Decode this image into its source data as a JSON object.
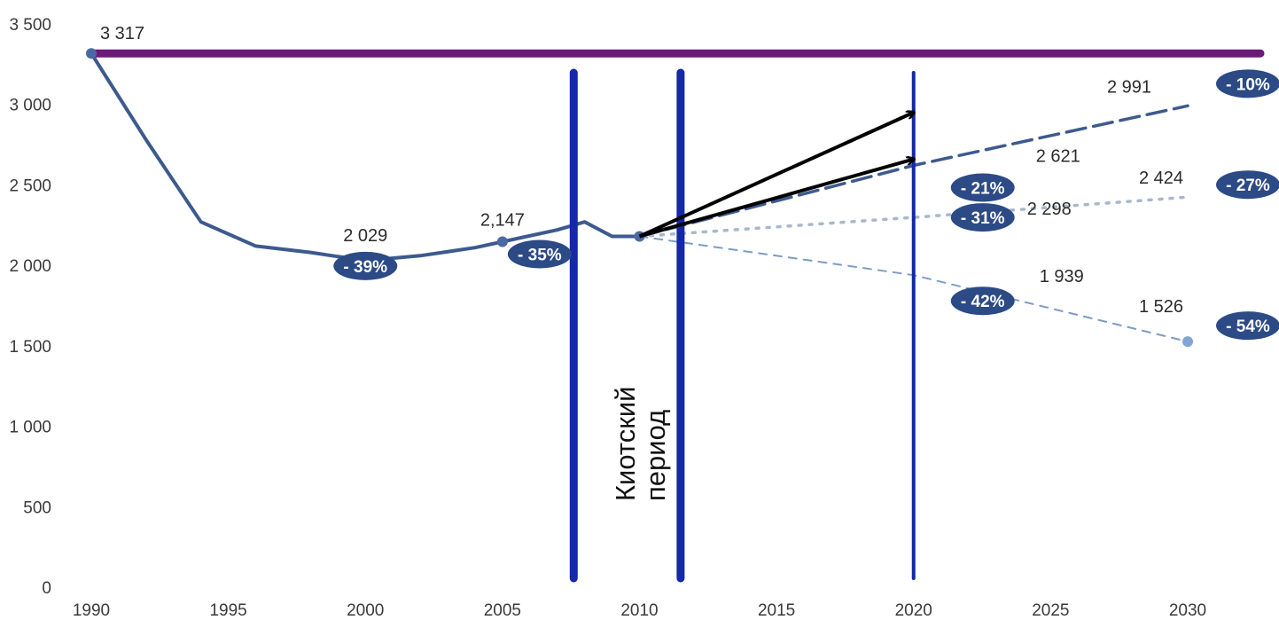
{
  "chart_data": {
    "type": "line",
    "xlim": [
      1990,
      2030
    ],
    "ylim": [
      0,
      3500
    ],
    "x_ticks": [
      "1990",
      "1995",
      "2000",
      "2005",
      "2010",
      "2015",
      "2020",
      "2025",
      "2030"
    ],
    "y_ticks": [
      "0",
      "500",
      "1 000",
      "1 500",
      "2 000",
      "2 500",
      "3 000",
      "3 500"
    ],
    "grid": false,
    "series": [
      {
        "key": "historical",
        "style": "solid",
        "color": "#3d5a8e",
        "points": [
          {
            "x": 1990,
            "y": 3317
          },
          {
            "x": 1992,
            "y": 2780
          },
          {
            "x": 1994,
            "y": 2270
          },
          {
            "x": 1996,
            "y": 2120
          },
          {
            "x": 1998,
            "y": 2080
          },
          {
            "x": 2000,
            "y": 2029
          },
          {
            "x": 2002,
            "y": 2060
          },
          {
            "x": 2004,
            "y": 2110
          },
          {
            "x": 2005,
            "y": 2147
          },
          {
            "x": 2007,
            "y": 2220
          },
          {
            "x": 2008,
            "y": 2270
          },
          {
            "x": 2009,
            "y": 2180
          },
          {
            "x": 2010,
            "y": 2180
          }
        ]
      },
      {
        "key": "scenario_high",
        "style": "longdash",
        "color": "#3d5a8e",
        "points": [
          {
            "x": 2010,
            "y": 2180
          },
          {
            "x": 2020,
            "y": 2621
          },
          {
            "x": 2030,
            "y": 2991
          }
        ]
      },
      {
        "key": "scenario_mid",
        "style": "dotted",
        "color": "#a8b8cc",
        "points": [
          {
            "x": 2010,
            "y": 2180
          },
          {
            "x": 2020,
            "y": 2298
          },
          {
            "x": 2030,
            "y": 2424
          }
        ]
      },
      {
        "key": "scenario_low",
        "style": "dashed",
        "color": "#7d9cc4",
        "points": [
          {
            "x": 2010,
            "y": 2180
          },
          {
            "x": 2020,
            "y": 1939
          },
          {
            "x": 2030,
            "y": 1526
          }
        ]
      }
    ],
    "baseline": {
      "y": 3317,
      "color": "#6b1a7a"
    },
    "vertical_lines": [
      {
        "x": 2007.6,
        "color": "#1428a8"
      },
      {
        "x": 2011.5,
        "color": "#1428a8"
      },
      {
        "x": 2020,
        "color": "#1428a8"
      }
    ],
    "arrows": [
      {
        "from": [
          2010,
          2180
        ],
        "to": [
          2020,
          2950
        ]
      },
      {
        "from": [
          2010,
          2180
        ],
        "to": [
          2020,
          2660
        ]
      }
    ],
    "data_labels": [
      {
        "text": "3 317",
        "x": 1990,
        "y": 3317
      },
      {
        "text": "2 029",
        "x": 2000,
        "y": 2029
      },
      {
        "text": "2,147",
        "x": 2005,
        "y": 2147
      },
      {
        "text": "2 621",
        "x": 2020,
        "y": 2621
      },
      {
        "text": "2 298",
        "x": 2020,
        "y": 2298
      },
      {
        "text": "1 939",
        "x": 2020,
        "y": 1939
      },
      {
        "text": "2 991",
        "x": 2030,
        "y": 2991
      },
      {
        "text": "2 424",
        "x": 2030,
        "y": 2424
      },
      {
        "text": "1 526",
        "x": 2030,
        "y": 1526
      }
    ],
    "badges": [
      {
        "text": "- 39%",
        "x": 2000,
        "y": 2029
      },
      {
        "text": "- 35%",
        "x": 2005,
        "y": 2147
      },
      {
        "text": "- 21%",
        "x": 2020,
        "y": 2621
      },
      {
        "text": "- 31%",
        "x": 2020,
        "y": 2298
      },
      {
        "text": "- 42%",
        "x": 2020,
        "y": 1939
      },
      {
        "text": "- 10%",
        "x": 2030,
        "y": 2991
      },
      {
        "text": "- 27%",
        "x": 2030,
        "y": 2424
      },
      {
        "text": "- 54%",
        "x": 2030,
        "y": 1526
      }
    ],
    "badge_color": "#2b4a86",
    "annotation": {
      "lines": [
        "Киотский",
        "период"
      ]
    }
  }
}
